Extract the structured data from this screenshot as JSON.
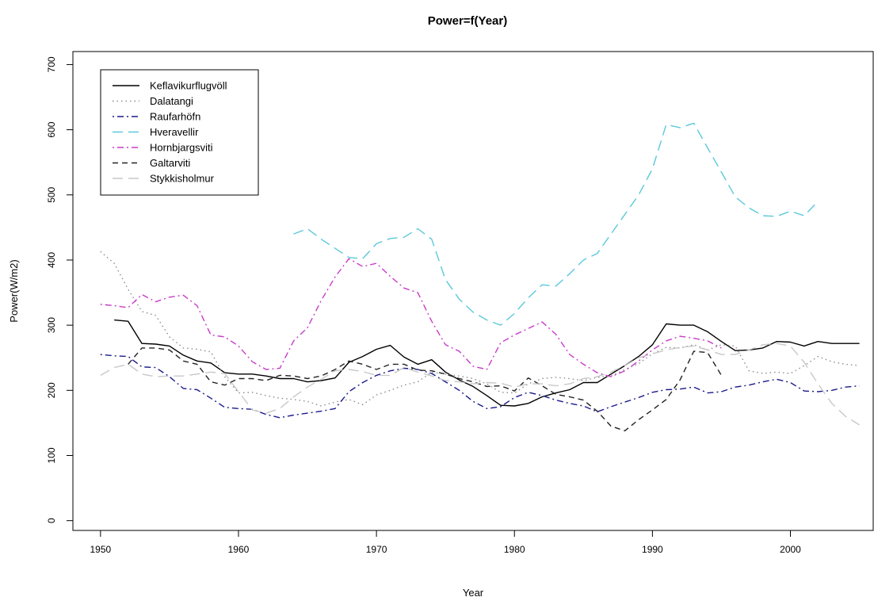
{
  "chart_data": {
    "type": "line",
    "title": "Power=f(Year)",
    "xlabel": "Year",
    "ylabel": "Power(W/m2)",
    "xlim": [
      1948,
      2006
    ],
    "ylim": [
      -15,
      720
    ],
    "x_ticks": [
      1950,
      1960,
      1970,
      1980,
      1990,
      2000
    ],
    "y_ticks": [
      0,
      100,
      200,
      300,
      400,
      500,
      600,
      700
    ],
    "grid": false,
    "legend_position": "top-left",
    "series": [
      {
        "name": "Keflavikurflugvöll",
        "color": "#000000",
        "dash": "solid",
        "x": [
          1951,
          1952,
          1953,
          1954,
          1955,
          1956,
          1957,
          1958,
          1959,
          1960,
          1961,
          1962,
          1963,
          1964,
          1965,
          1966,
          1967,
          1968,
          1969,
          1970,
          1971,
          1972,
          1973,
          1974,
          1975,
          1976,
          1977,
          1978,
          1979,
          1980,
          1981,
          1982,
          1983,
          1984,
          1985,
          1986,
          1987,
          1988,
          1989,
          1990,
          1991,
          1992,
          1993,
          1994,
          1995,
          1996,
          1997,
          1998,
          1999,
          2000,
          2001,
          2002,
          2003,
          2004,
          2005
        ],
        "values": [
          308,
          306,
          272,
          271,
          268,
          254,
          245,
          242,
          227,
          225,
          225,
          222,
          218,
          218,
          213,
          215,
          219,
          243,
          252,
          263,
          269,
          251,
          240,
          247,
          228,
          216,
          206,
          192,
          177,
          176,
          180,
          190,
          196,
          201,
          212,
          212,
          225,
          238,
          252,
          270,
          302,
          300,
          300,
          290,
          275,
          261,
          262,
          265,
          275,
          274,
          268,
          275,
          272,
          272,
          272
        ]
      },
      {
        "name": "Dalatangi",
        "color": "#8c8c8c",
        "dash": "dotted",
        "x": [
          1950,
          1951,
          1952,
          1953,
          1954,
          1955,
          1956,
          1957,
          1958,
          1959,
          1960,
          1961,
          1962,
          1963,
          1964,
          1965,
          1966,
          1967,
          1968,
          1969,
          1970,
          1971,
          1972,
          1973,
          1974,
          1975,
          1976,
          1977,
          1978,
          1979,
          1980,
          1981,
          1982,
          1983,
          1984,
          1985,
          1986,
          1987,
          1988,
          1989,
          1990,
          1991,
          1992,
          1993,
          1994,
          1995,
          1996,
          1997,
          1998,
          1999,
          2000,
          2001,
          2002,
          2003,
          2004,
          2005
        ],
        "values": [
          413,
          395,
          355,
          321,
          315,
          282,
          265,
          263,
          259,
          221,
          196,
          197,
          192,
          188,
          186,
          183,
          176,
          182,
          186,
          178,
          193,
          200,
          208,
          213,
          228,
          225,
          222,
          218,
          210,
          197,
          196,
          210,
          218,
          220,
          218,
          215,
          220,
          222,
          232,
          241,
          256,
          266,
          265,
          270,
          262,
          270,
          268,
          230,
          226,
          228,
          226,
          238,
          252,
          244,
          240,
          238
        ]
      },
      {
        "name": "Raufarhöfn",
        "color": "#1a1a8c",
        "dash": "dashdot",
        "x": [
          1950,
          1951,
          1952,
          1953,
          1954,
          1955,
          1956,
          1957,
          1958,
          1959,
          1960,
          1961,
          1962,
          1963,
          1964,
          1965,
          1966,
          1967,
          1968,
          1969,
          1970,
          1971,
          1972,
          1973,
          1974,
          1975,
          1976,
          1977,
          1978,
          1979,
          1980,
          1981,
          1982,
          1983,
          1984,
          1985,
          1986,
          1987,
          1988,
          1989,
          1990,
          1991,
          1992,
          1993,
          1994,
          1995,
          1996,
          1997,
          1998,
          1999,
          2000,
          2001,
          2002,
          2003,
          2004,
          2005
        ],
        "values": [
          255,
          253,
          252,
          236,
          235,
          221,
          203,
          201,
          188,
          174,
          172,
          171,
          163,
          158,
          162,
          165,
          168,
          172,
          198,
          212,
          223,
          230,
          234,
          232,
          226,
          213,
          200,
          183,
          172,
          175,
          189,
          197,
          192,
          185,
          180,
          176,
          167,
          175,
          182,
          189,
          197,
          201,
          202,
          205,
          196,
          198,
          205,
          208,
          213,
          217,
          212,
          199,
          198,
          200,
          205,
          207
        ]
      },
      {
        "name": "Hveravellir",
        "color": "#5bc8dc",
        "dash": "longdash",
        "x": [
          1964,
          1965,
          1966,
          1967,
          1968,
          1969,
          1970,
          1971,
          1972,
          1973,
          1974,
          1975,
          1976,
          1977,
          1978,
          1979,
          1980,
          1981,
          1982,
          1983,
          1984,
          1985,
          1986,
          1987,
          1988,
          1989,
          1990,
          1991,
          1992,
          1993,
          1994,
          1995,
          1996,
          1997,
          1998,
          1999,
          2000,
          2001,
          2002
        ],
        "values": [
          440,
          448,
          432,
          418,
          404,
          402,
          425,
          433,
          435,
          448,
          432,
          370,
          340,
          320,
          308,
          300,
          318,
          342,
          362,
          360,
          379,
          400,
          410,
          440,
          470,
          500,
          540,
          608,
          603,
          610,
          572,
          535,
          497,
          480,
          468,
          467,
          475,
          468,
          490
        ]
      },
      {
        "name": "Hornbjargsviti",
        "color": "#c83cc8",
        "dash": "dashdot",
        "x": [
          1950,
          1951,
          1952,
          1953,
          1954,
          1955,
          1956,
          1957,
          1958,
          1959,
          1960,
          1961,
          1962,
          1963,
          1964,
          1965,
          1966,
          1967,
          1968,
          1969,
          1970,
          1971,
          1972,
          1973,
          1974,
          1975,
          1976,
          1977,
          1978,
          1979,
          1980,
          1981,
          1982,
          1983,
          1984,
          1985,
          1986,
          1987,
          1988,
          1989,
          1990,
          1991,
          1992,
          1993,
          1994,
          1995
        ],
        "values": [
          332,
          330,
          327,
          347,
          336,
          343,
          346,
          330,
          285,
          282,
          268,
          244,
          232,
          234,
          276,
          296,
          338,
          374,
          402,
          390,
          395,
          375,
          357,
          350,
          306,
          270,
          260,
          237,
          232,
          273,
          285,
          295,
          305,
          286,
          255,
          240,
          227,
          221,
          230,
          245,
          262,
          276,
          283,
          280,
          276,
          265
        ]
      },
      {
        "name": "Galtarviti",
        "color": "#222222",
        "dash": "dashed",
        "x": [
          1952,
          1953,
          1954,
          1955,
          1956,
          1957,
          1958,
          1959,
          1960,
          1961,
          1962,
          1963,
          1964,
          1965,
          1966,
          1967,
          1968,
          1969,
          1970,
          1971,
          1972,
          1973,
          1974,
          1975,
          1976,
          1977,
          1978,
          1979,
          1980,
          1981,
          1982,
          1983,
          1984,
          1985,
          1986,
          1987,
          1988,
          1989,
          1990,
          1991,
          1992,
          1993,
          1994,
          1995
        ],
        "values": [
          240,
          265,
          265,
          262,
          245,
          240,
          213,
          208,
          218,
          218,
          215,
          223,
          222,
          218,
          222,
          232,
          245,
          240,
          232,
          240,
          240,
          231,
          230,
          225,
          218,
          213,
          206,
          207,
          199,
          219,
          207,
          194,
          190,
          185,
          168,
          145,
          138,
          155,
          170,
          186,
          216,
          260,
          258,
          223
        ]
      },
      {
        "name": "Stykkisholmur",
        "color": "#c8c8c8",
        "dash": "longdash",
        "x": [
          1950,
          1951,
          1952,
          1953,
          1954,
          1955,
          1956,
          1957,
          1958,
          1959,
          1960,
          1961,
          1962,
          1963,
          1964,
          1965,
          1966,
          1967,
          1968,
          1969,
          1970,
          1971,
          1972,
          1973,
          1974,
          1975,
          1976,
          1977,
          1978,
          1979,
          1980,
          1981,
          1982,
          1983,
          1984,
          1985,
          1986,
          1987,
          1988,
          1989,
          1990,
          1991,
          1992,
          1993,
          1994,
          1995,
          1996,
          1997,
          1998,
          1999,
          2000,
          2001,
          2002,
          2003,
          2004,
          2005
        ],
        "values": [
          223,
          235,
          240,
          225,
          221,
          222,
          222,
          225,
          228,
          226,
          198,
          170,
          165,
          172,
          190,
          205,
          217,
          230,
          232,
          229,
          223,
          223,
          235,
          228,
          222,
          215,
          213,
          210,
          212,
          211,
          205,
          210,
          210,
          207,
          210,
          218,
          221,
          228,
          238,
          250,
          256,
          262,
          266,
          268,
          262,
          255,
          255,
          262,
          270,
          272,
          268,
          243,
          210,
          180,
          160,
          147
        ]
      }
    ]
  }
}
